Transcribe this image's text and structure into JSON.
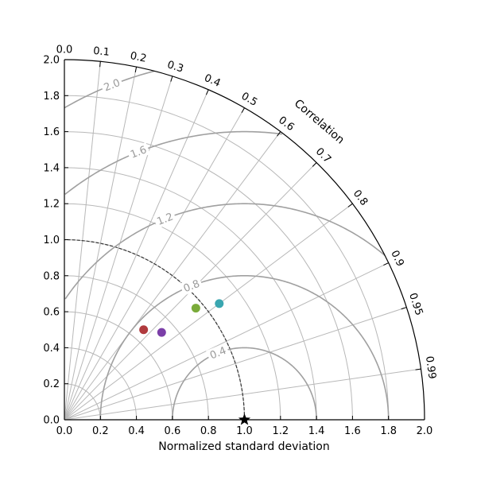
{
  "chart_data": {
    "type": "scatter",
    "subtype": "taylor-diagram",
    "xlabel": "Normalized standard deviation",
    "corr_label": "Correlation",
    "std_range": [
      0,
      2
    ],
    "std_ticks": [
      "0.0",
      "0.2",
      "0.4",
      "0.6",
      "0.8",
      "1.0",
      "1.2",
      "1.4",
      "1.6",
      "1.8",
      "2.0"
    ],
    "corr_ticks": [
      {
        "value": 0.0,
        "label": "0.0"
      },
      {
        "value": 0.1,
        "label": "0.1"
      },
      {
        "value": 0.2,
        "label": "0.2"
      },
      {
        "value": 0.3,
        "label": "0.3"
      },
      {
        "value": 0.4,
        "label": "0.4"
      },
      {
        "value": 0.5,
        "label": "0.5"
      },
      {
        "value": 0.6,
        "label": "0.6"
      },
      {
        "value": 0.7,
        "label": "0.7"
      },
      {
        "value": 0.8,
        "label": "0.8"
      },
      {
        "value": 0.9,
        "label": "0.9"
      },
      {
        "value": 0.95,
        "label": "0.95"
      },
      {
        "value": 0.99,
        "label": "0.99"
      }
    ],
    "grid_std": [
      0.2,
      0.4,
      0.6,
      0.8,
      1.0,
      1.2,
      1.4,
      1.6,
      1.8
    ],
    "rms_contours": [
      0.4,
      0.8,
      1.2,
      1.6,
      2.0
    ],
    "rms_labels": [
      "0.4",
      "0.8",
      "1.2",
      "1.6",
      "2.0"
    ],
    "reference": {
      "std": 1.0,
      "marker": "star"
    },
    "points": [
      {
        "x": 0.44,
        "y": 0.5,
        "color": "#b03a3e"
      },
      {
        "x": 0.54,
        "y": 0.485,
        "color": "#7b3fa8"
      },
      {
        "x": 0.73,
        "y": 0.62,
        "color": "#7aab3a"
      },
      {
        "x": 0.86,
        "y": 0.645,
        "color": "#3aa6b0"
      }
    ],
    "grid": true
  }
}
